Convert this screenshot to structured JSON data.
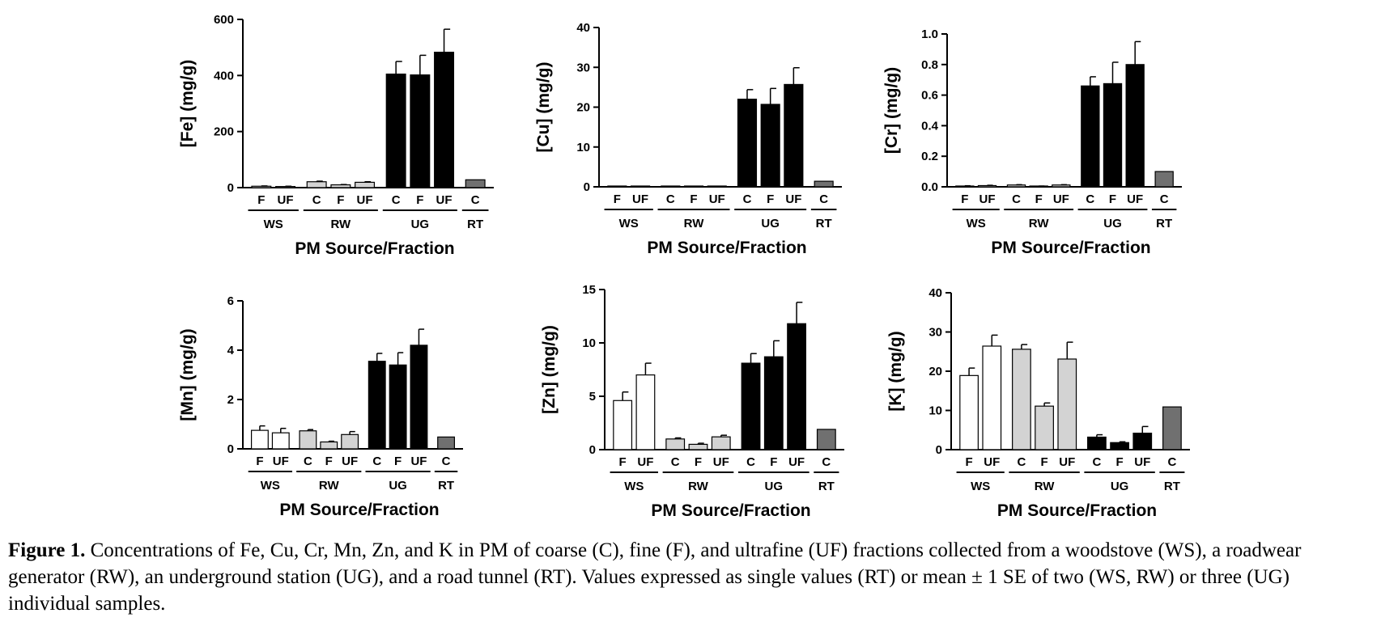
{
  "figure": {
    "caption_label": "Figure 1.",
    "caption_text": " Concentrations of Fe, Cu, Cr, Mn, Zn, and K in PM of coarse (C), fine (F), and ultrafine (UF) fractions collected from a woodstove (WS), a roadwear generator (RW), an underground station (UG), and a road tunnel (RT). Values expressed as single values (RT) or mean ± 1 SE of two (WS, RW) or three (UG) individual samples."
  },
  "colors": {
    "WS": "#ffffff",
    "RW": "#d3d3d3",
    "UG": "#000000",
    "RT": "#707070"
  },
  "chart_data": [
    {
      "type": "bar",
      "ylabel": "[Fe] (mg/g)",
      "xlabel": "PM Source/Fraction",
      "ylim": [
        0,
        600
      ],
      "yticks": [
        0,
        200,
        400,
        600
      ],
      "grid": false,
      "categories": [
        "F",
        "UF",
        "C",
        "F",
        "UF",
        "C",
        "F",
        "UF",
        "C"
      ],
      "groups": [
        "WS",
        "WS",
        "RW",
        "RW",
        "RW",
        "UG",
        "UG",
        "UG",
        "RT"
      ],
      "values": [
        5,
        4,
        21,
        10,
        19,
        405,
        402,
        483,
        28
      ],
      "errors": [
        1,
        1,
        2,
        1,
        2,
        45,
        70,
        82,
        0
      ]
    },
    {
      "type": "bar",
      "ylabel": "[Cu] (mg/g)",
      "xlabel": "PM Source/Fraction",
      "ylim": [
        0,
        40
      ],
      "yticks": [
        0,
        10,
        20,
        30,
        40
      ],
      "grid": false,
      "categories": [
        "F",
        "UF",
        "C",
        "F",
        "UF",
        "C",
        "F",
        "UF",
        "C"
      ],
      "groups": [
        "WS",
        "WS",
        "RW",
        "RW",
        "RW",
        "UG",
        "UG",
        "UG",
        "RT"
      ],
      "values": [
        0.2,
        0.2,
        0.1,
        0.1,
        0.1,
        22,
        20.7,
        25.7,
        1.4
      ],
      "errors": [
        0,
        0,
        0,
        0,
        0,
        2.4,
        4,
        4.2,
        0
      ]
    },
    {
      "type": "bar",
      "ylabel": "[Cr] (mg/g)",
      "xlabel": "PM Source/Fraction",
      "ylim": [
        0,
        1.0
      ],
      "yticks": [
        0.0,
        0.2,
        0.4,
        0.6,
        0.8,
        1.0
      ],
      "yticklabels": [
        "0.0",
        "0.2",
        "0.4",
        "0.6",
        "0.8",
        "1.0"
      ],
      "grid": false,
      "categories": [
        "F",
        "UF",
        "C",
        "F",
        "UF",
        "C",
        "F",
        "UF",
        "C"
      ],
      "groups": [
        "WS",
        "WS",
        "RW",
        "RW",
        "RW",
        "UG",
        "UG",
        "UG",
        "RT"
      ],
      "values": [
        0.005,
        0.008,
        0.012,
        0.004,
        0.012,
        0.66,
        0.675,
        0.8,
        0.1
      ],
      "errors": [
        0.002,
        0.002,
        0.002,
        0.001,
        0.002,
        0.06,
        0.14,
        0.15,
        0
      ]
    },
    {
      "type": "bar",
      "ylabel": "[Mn] (mg/g)",
      "xlabel": "PM Source/Fraction",
      "ylim": [
        0,
        6
      ],
      "yticks": [
        0,
        2,
        4,
        6
      ],
      "grid": false,
      "categories": [
        "F",
        "UF",
        "C",
        "F",
        "UF",
        "C",
        "F",
        "UF",
        "C"
      ],
      "groups": [
        "WS",
        "WS",
        "RW",
        "RW",
        "RW",
        "UG",
        "UG",
        "UG",
        "RT"
      ],
      "values": [
        0.75,
        0.65,
        0.73,
        0.28,
        0.58,
        3.55,
        3.4,
        4.2,
        0.48
      ],
      "errors": [
        0.18,
        0.18,
        0.05,
        0.03,
        0.12,
        0.32,
        0.5,
        0.65,
        0
      ]
    },
    {
      "type": "bar",
      "ylabel": "[Zn] (mg/g)",
      "xlabel": "PM Source/Fraction",
      "ylim": [
        0,
        15
      ],
      "yticks": [
        0,
        5,
        10,
        15
      ],
      "grid": false,
      "categories": [
        "F",
        "UF",
        "C",
        "F",
        "UF",
        "C",
        "F",
        "UF",
        "C"
      ],
      "groups": [
        "WS",
        "WS",
        "RW",
        "RW",
        "RW",
        "UG",
        "UG",
        "UG",
        "RT"
      ],
      "values": [
        4.6,
        7.0,
        1.0,
        0.5,
        1.2,
        8.1,
        8.7,
        11.8,
        1.9
      ],
      "errors": [
        0.8,
        1.1,
        0.1,
        0.1,
        0.15,
        0.9,
        1.5,
        2.0,
        0
      ]
    },
    {
      "type": "bar",
      "ylabel": "[K] (mg/g)",
      "xlabel": "PM Source/Fraction",
      "ylim": [
        0,
        40
      ],
      "yticks": [
        0,
        10,
        20,
        30,
        40
      ],
      "grid": false,
      "categories": [
        "F",
        "UF",
        "C",
        "F",
        "UF",
        "C",
        "F",
        "UF",
        "C"
      ],
      "groups": [
        "WS",
        "WS",
        "RW",
        "RW",
        "RW",
        "UG",
        "UG",
        "UG",
        "RT"
      ],
      "values": [
        18.9,
        26.4,
        25.6,
        11.1,
        23.1,
        3.2,
        1.8,
        4.2,
        10.9
      ],
      "errors": [
        1.9,
        2.8,
        1.2,
        0.8,
        4.3,
        0.6,
        0.2,
        1.7,
        0
      ]
    }
  ]
}
